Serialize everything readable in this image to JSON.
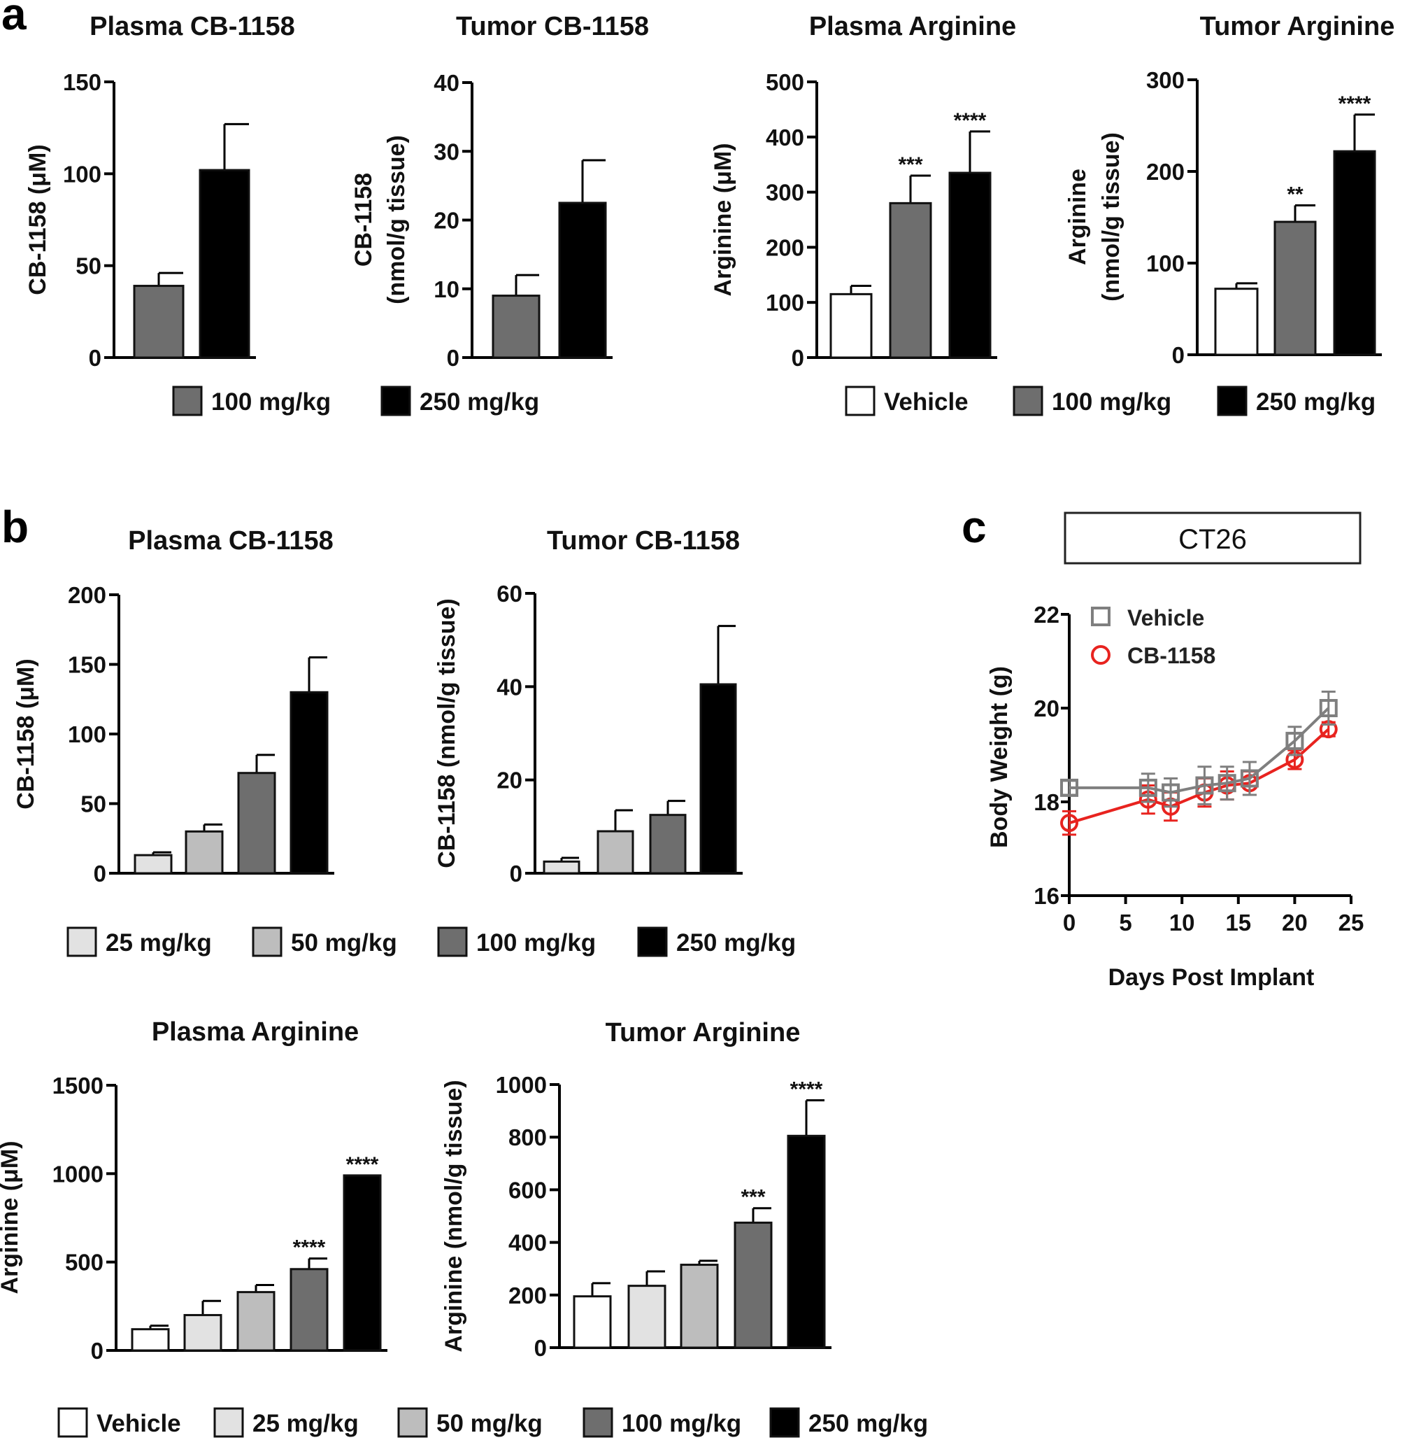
{
  "panel_letters": {
    "a": "a",
    "b": "b",
    "c": "c"
  },
  "colors": {
    "vehicle": "#ffffff",
    "d25": "#e2e2e2",
    "d50": "#bdbdbd",
    "d100": "#6e6e6e",
    "d250": "#000000",
    "line_vehicle": "#7f7f7f",
    "line_cb1158": "#e8231f"
  },
  "legends": {
    "a_left": [
      {
        "label": "100 mg/kg",
        "color_key": "d100"
      },
      {
        "label": "250 mg/kg",
        "color_key": "d250"
      }
    ],
    "a_right": [
      {
        "label": "Vehicle",
        "color_key": "vehicle"
      },
      {
        "label": "100 mg/kg",
        "color_key": "d100"
      },
      {
        "label": "250 mg/kg",
        "color_key": "d250"
      }
    ],
    "b_top": [
      {
        "label": "25 mg/kg",
        "color_key": "d25"
      },
      {
        "label": "50 mg/kg",
        "color_key": "d50"
      },
      {
        "label": "100 mg/kg",
        "color_key": "d100"
      },
      {
        "label": "250 mg/kg",
        "color_key": "d250"
      }
    ],
    "b_bottom": [
      {
        "label": "Vehicle",
        "color_key": "vehicle"
      },
      {
        "label": "25 mg/kg",
        "color_key": "d25"
      },
      {
        "label": "50 mg/kg",
        "color_key": "d50"
      },
      {
        "label": "100 mg/kg",
        "color_key": "d100"
      },
      {
        "label": "250 mg/kg",
        "color_key": "d250"
      }
    ]
  },
  "chart_data": [
    {
      "id": "a_plasma_cb1158",
      "panel": "a",
      "type": "bar",
      "title": "Plasma CB-1158",
      "ylabel": [
        "CB-1158 (μM)"
      ],
      "ylim": [
        0,
        150
      ],
      "yticks": [
        0,
        50,
        100,
        150
      ],
      "categories": [
        "100 mg/kg",
        "250 mg/kg"
      ],
      "color_keys": [
        "d100",
        "d250"
      ],
      "values": [
        39,
        102
      ],
      "errors": [
        7,
        25
      ],
      "significance": [
        "",
        ""
      ]
    },
    {
      "id": "a_tumor_cb1158",
      "panel": "a",
      "type": "bar",
      "title": "Tumor CB-1158",
      "ylabel": [
        "CB-1158",
        "(nmol/g tissue)"
      ],
      "ylim": [
        0,
        40
      ],
      "yticks": [
        0,
        10,
        20,
        30,
        40
      ],
      "categories": [
        "100 mg/kg",
        "250 mg/kg"
      ],
      "color_keys": [
        "d100",
        "d250"
      ],
      "values": [
        9,
        22.5
      ],
      "errors": [
        3,
        6.2
      ],
      "significance": [
        "",
        ""
      ]
    },
    {
      "id": "a_plasma_arginine",
      "panel": "a",
      "type": "bar",
      "title": "Plasma Arginine",
      "ylabel": [
        "Arginine (μM)"
      ],
      "ylim": [
        0,
        500
      ],
      "yticks": [
        0,
        100,
        200,
        300,
        400,
        500
      ],
      "categories": [
        "Vehicle",
        "100 mg/kg",
        "250 mg/kg"
      ],
      "color_keys": [
        "vehicle",
        "d100",
        "d250"
      ],
      "values": [
        115,
        280,
        335
      ],
      "errors": [
        15,
        50,
        75
      ],
      "significance": [
        "",
        "***",
        "****"
      ]
    },
    {
      "id": "a_tumor_arginine",
      "panel": "a",
      "type": "bar",
      "title": "Tumor Arginine",
      "ylabel": [
        "Arginine",
        "(nmol/g tissue)"
      ],
      "ylim": [
        0,
        300
      ],
      "yticks": [
        0,
        100,
        200,
        300
      ],
      "categories": [
        "Vehicle",
        "100 mg/kg",
        "250 mg/kg"
      ],
      "color_keys": [
        "vehicle",
        "d100",
        "d250"
      ],
      "values": [
        72,
        145,
        222
      ],
      "errors": [
        6,
        18,
        40
      ],
      "significance": [
        "",
        "**",
        "****"
      ]
    },
    {
      "id": "b_plasma_cb1158",
      "panel": "b",
      "type": "bar",
      "title": "Plasma CB-1158",
      "ylabel": [
        "CB-1158 (μM)"
      ],
      "ylim": [
        0,
        200
      ],
      "yticks": [
        0,
        50,
        100,
        150,
        200
      ],
      "categories": [
        "25 mg/kg",
        "50 mg/kg",
        "100 mg/kg",
        "250 mg/kg"
      ],
      "color_keys": [
        "d25",
        "d50",
        "d100",
        "d250"
      ],
      "values": [
        13,
        30,
        72,
        130
      ],
      "errors": [
        2,
        5,
        13,
        25
      ],
      "significance": [
        "",
        "",
        "",
        ""
      ]
    },
    {
      "id": "b_tumor_cb1158",
      "panel": "b",
      "type": "bar",
      "title": "Tumor CB-1158",
      "ylabel": [
        "CB-1158 (nmol/g tissue)"
      ],
      "ylim": [
        0,
        60
      ],
      "yticks": [
        0,
        20,
        40,
        60
      ],
      "categories": [
        "25 mg/kg",
        "50 mg/kg",
        "100 mg/kg",
        "250 mg/kg"
      ],
      "color_keys": [
        "d25",
        "d50",
        "d100",
        "d250"
      ],
      "values": [
        2.5,
        9,
        12.5,
        40.5
      ],
      "errors": [
        0.8,
        4.5,
        3,
        12.5
      ],
      "significance": [
        "",
        "",
        "",
        ""
      ]
    },
    {
      "id": "b_plasma_arginine",
      "panel": "b",
      "type": "bar",
      "title": "Plasma Arginine",
      "ylabel": [
        "Arginine (μM)"
      ],
      "ylim": [
        0,
        1500
      ],
      "yticks": [
        0,
        500,
        1000,
        1500
      ],
      "categories": [
        "Vehicle",
        "25 mg/kg",
        "50 mg/kg",
        "100 mg/kg",
        "250 mg/kg"
      ],
      "color_keys": [
        "vehicle",
        "d25",
        "d50",
        "d100",
        "d250"
      ],
      "values": [
        120,
        200,
        330,
        460,
        990
      ],
      "errors": [
        20,
        80,
        40,
        60,
        0
      ],
      "significance": [
        "",
        "",
        "",
        "****",
        "****"
      ]
    },
    {
      "id": "b_tumor_arginine",
      "panel": "b",
      "type": "bar",
      "title": "Tumor Arginine",
      "ylabel": [
        "Arginine (nmol/g tissue)"
      ],
      "ylim": [
        0,
        1000
      ],
      "yticks": [
        0,
        200,
        400,
        600,
        800,
        1000
      ],
      "categories": [
        "Vehicle",
        "25 mg/kg",
        "50 mg/kg",
        "100 mg/kg",
        "250 mg/kg"
      ],
      "color_keys": [
        "vehicle",
        "d25",
        "d50",
        "d100",
        "d250"
      ],
      "values": [
        195,
        235,
        315,
        475,
        805
      ],
      "errors": [
        50,
        55,
        15,
        55,
        135
      ],
      "significance": [
        "",
        "",
        "",
        "***",
        "****"
      ]
    },
    {
      "id": "c_body_weight",
      "panel": "c",
      "type": "line",
      "title": "CT26",
      "xlabel": "Days Post Implant",
      "ylabel": [
        "Body Weight (g)"
      ],
      "xlim": [
        0,
        25
      ],
      "xticks": [
        0,
        5,
        10,
        15,
        20,
        25
      ],
      "ylim": [
        16,
        22
      ],
      "yticks": [
        16,
        18,
        20,
        22
      ],
      "legend_position": "top-left",
      "series": [
        {
          "name": "Vehicle",
          "marker": "square",
          "color_key": "line_vehicle",
          "x": [
            0,
            7,
            9,
            12,
            14,
            16,
            20,
            23
          ],
          "y": [
            18.3,
            18.3,
            18.2,
            18.35,
            18.4,
            18.5,
            19.3,
            20.0
          ],
          "err": [
            0.15,
            0.3,
            0.3,
            0.4,
            0.35,
            0.35,
            0.3,
            0.35
          ]
        },
        {
          "name": "CB-1158",
          "marker": "circle",
          "color_key": "line_cb1158",
          "x": [
            0,
            7,
            9,
            12,
            14,
            16,
            20,
            23
          ],
          "y": [
            17.55,
            18.05,
            17.9,
            18.2,
            18.35,
            18.4,
            18.9,
            19.55
          ],
          "err": [
            0.25,
            0.3,
            0.3,
            0.3,
            0.3,
            0.25,
            0.2,
            0.15
          ]
        }
      ]
    }
  ]
}
